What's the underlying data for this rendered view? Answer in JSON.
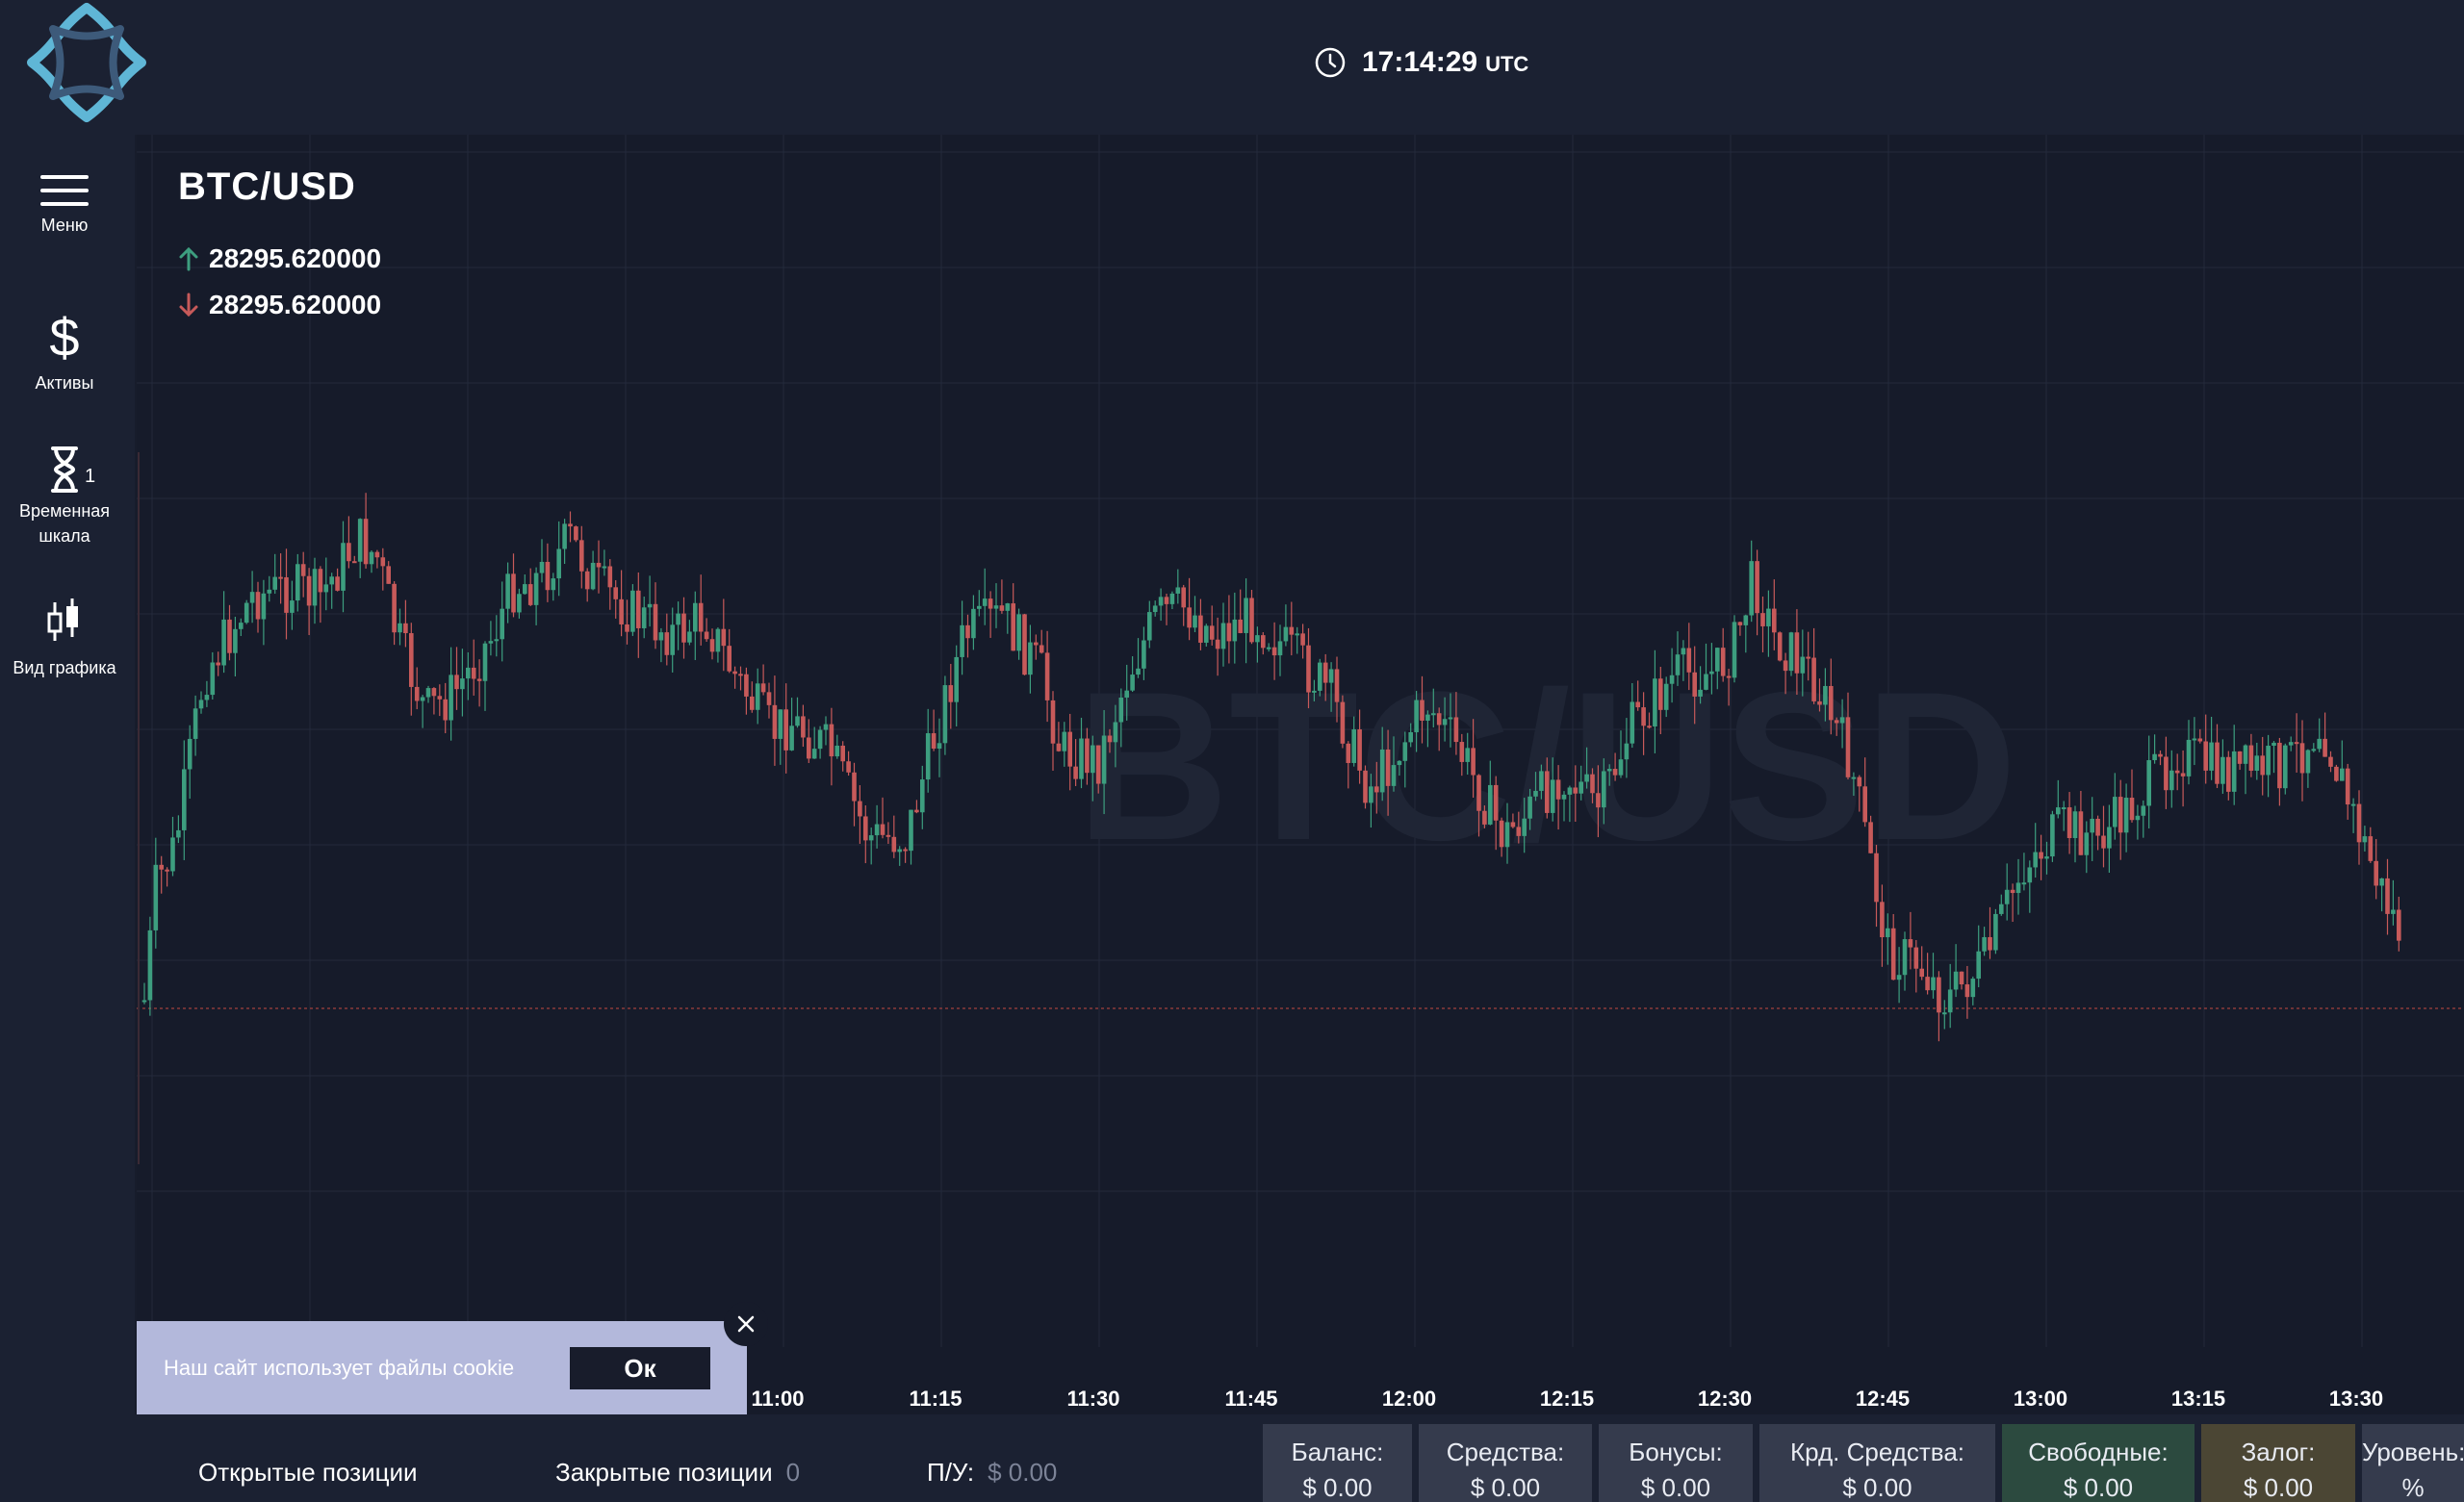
{
  "header": {
    "time": "17:14:29",
    "time_unit": "UTC"
  },
  "sidebar": {
    "items": [
      {
        "id": "menu",
        "label": "Меню",
        "icon": "hamburger-icon"
      },
      {
        "id": "assets",
        "label": "Активы",
        "icon": "dollar-icon"
      },
      {
        "id": "timeframe",
        "label_line1": "Временная",
        "label_line2": "шкала",
        "badge": "1",
        "icon": "hourglass-icon"
      },
      {
        "id": "chart-view",
        "label": "Вид графика",
        "icon": "candlestick-icon"
      }
    ]
  },
  "instrument": {
    "symbol": "BTC/USD",
    "ask": "28295.620000",
    "bid": "28295.620000"
  },
  "chart_data": {
    "type": "candlestick",
    "watermark": "BTC/USD",
    "x_tick_labels": [
      "11:00",
      "11:15",
      "11:30",
      "11:45",
      "12:00",
      "12:15",
      "12:30",
      "12:45",
      "13:00",
      "13:15",
      "13:30"
    ],
    "colors": {
      "up": "#3d9e7f",
      "down": "#c75a5a",
      "grid": "#242a3b",
      "price_line": "#8a3b3b"
    }
  },
  "cookie_banner": {
    "text": "Наш сайт использует файлы cookie",
    "ok_label": "Ок"
  },
  "bottom": {
    "open_positions": "Открытые позиции",
    "closed_positions": "Закрытые позиции",
    "closed_count": "0",
    "pl_label": "П/У:",
    "pl_value": "$ 0.00",
    "stats": [
      {
        "label": "Баланс:",
        "value": "$ 0.00",
        "bg": "#353b4d"
      },
      {
        "label": "Средства:",
        "value": "$ 0.00",
        "bg": "#353b4d"
      },
      {
        "label": "Бонусы:",
        "value": "$ 0.00",
        "bg": "#353b4d"
      },
      {
        "label": "Крд. Средства:",
        "value": "$ 0.00",
        "bg": "#353b4d"
      },
      {
        "label": "Свободные:",
        "value": "$ 0.00",
        "bg": "#2c4a3f"
      },
      {
        "label": "Залог:",
        "value": "$ 0.00",
        "bg": "#4b4634"
      },
      {
        "label": "Уровень:",
        "value": "%",
        "bg": "#353b4d"
      }
    ]
  }
}
